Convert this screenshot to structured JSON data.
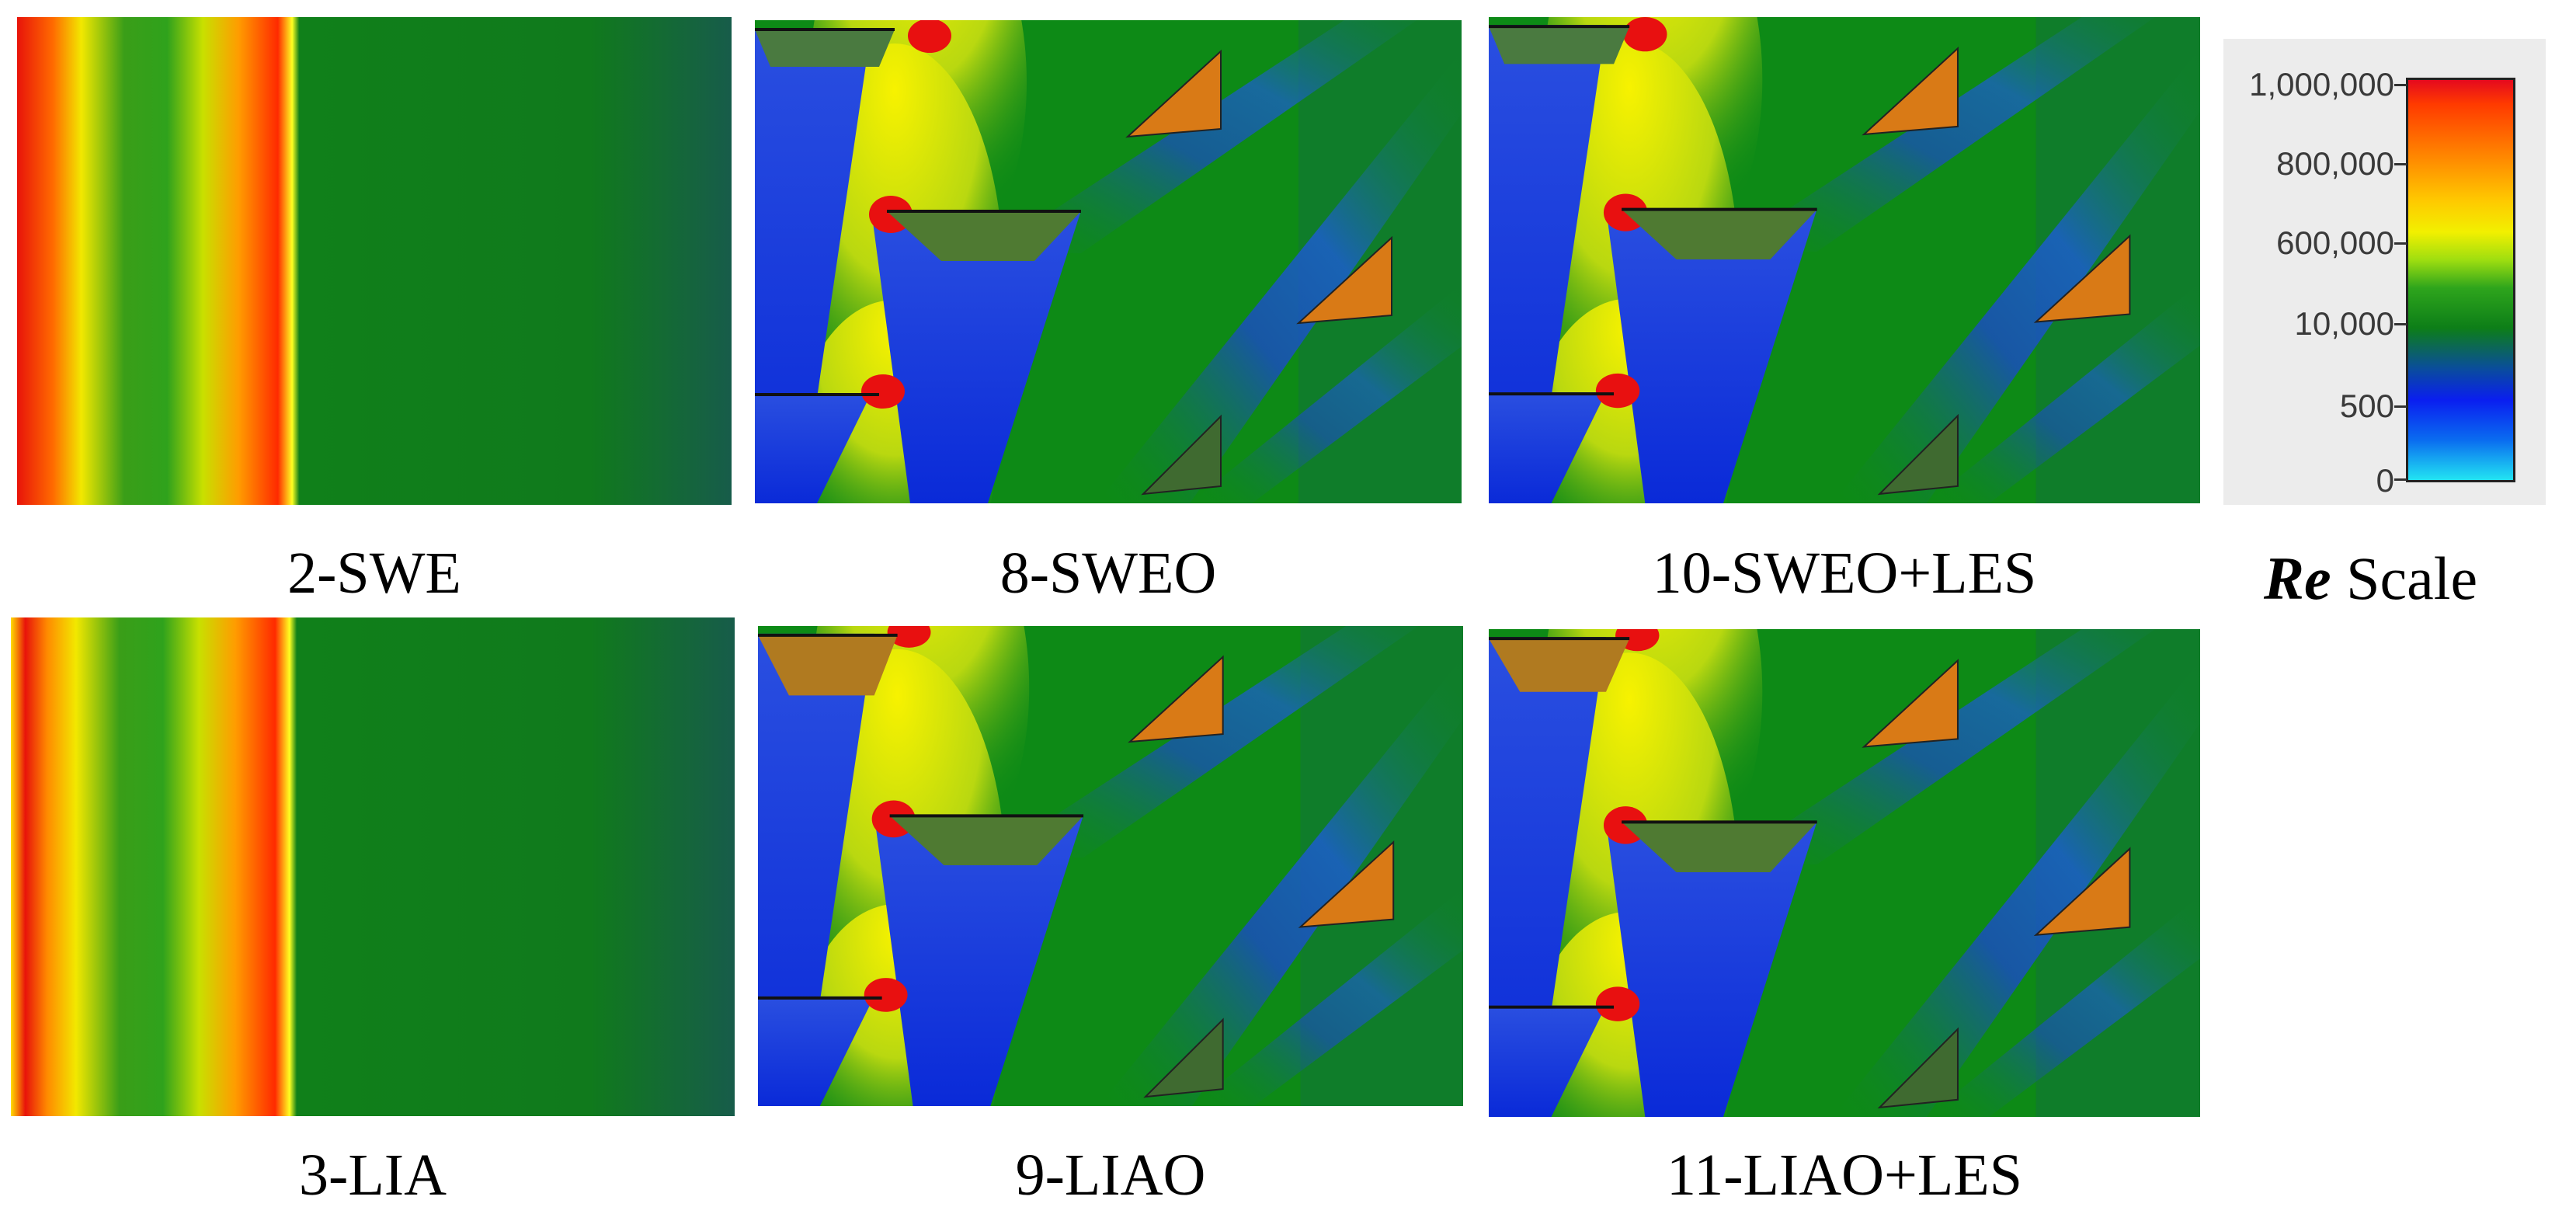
{
  "panels": [
    {
      "caption": "2-SWE"
    },
    {
      "caption": "8-SWEO"
    },
    {
      "caption": "10-SWEO+LES"
    },
    {
      "caption": "3-LIA"
    },
    {
      "caption": "9-LIAO"
    },
    {
      "caption": "11-LIAO+LES"
    }
  ],
  "scale": {
    "symbol": "Re",
    "label": "Scale",
    "ticks": [
      "1,000,000",
      "800,000",
      "600,000",
      "10,000",
      "500",
      "0"
    ]
  }
}
